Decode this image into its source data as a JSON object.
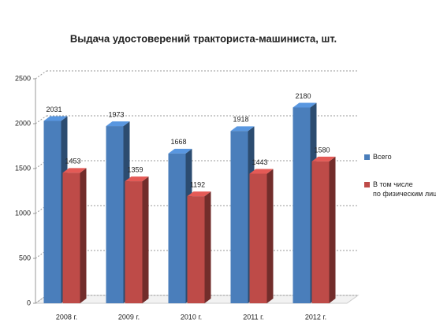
{
  "chart_data": {
    "type": "bar3d",
    "title": "Выдача удостоверений тракториста-машиниста, шт.",
    "categories": [
      "2008 г.",
      "2009 г.",
      "2010 г.",
      "2011 г.",
      "2012 г."
    ],
    "series": [
      {
        "name": "Всего",
        "color": "#4a7ebb",
        "values": [
          2031,
          1973,
          1668,
          1918,
          2180
        ]
      },
      {
        "name": "В том числе по физическим лицам",
        "color": "#be4b48",
        "values": [
          1453,
          1359,
          1192,
          1443,
          1580
        ]
      }
    ],
    "ylim": [
      0,
      2500
    ],
    "yticks": [
      0,
      500,
      1000,
      1500,
      2000,
      2500
    ],
    "grid": true,
    "legend": "right"
  }
}
